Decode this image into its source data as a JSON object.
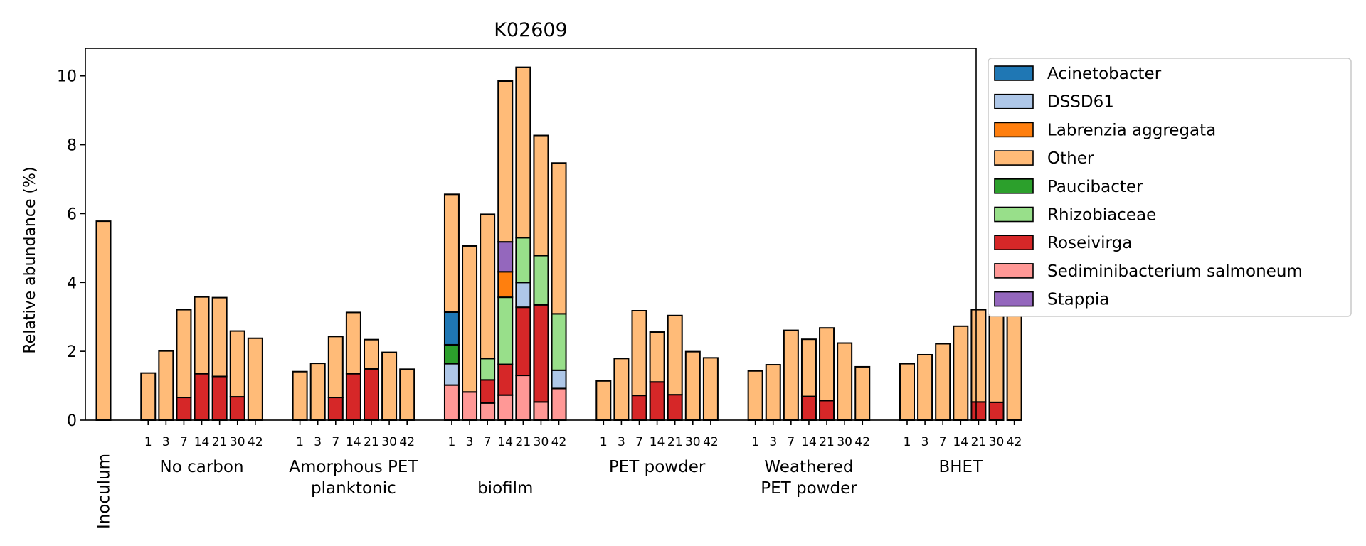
{
  "chart_data": {
    "type": "bar",
    "stacked": true,
    "title": "K02609",
    "xlabel": "",
    "ylabel": "Relative abundance (%)",
    "ylim": [
      0,
      10.8
    ],
    "yticks": [
      0,
      2,
      4,
      6,
      8,
      10
    ],
    "legend": {
      "placement": "outside-top-right",
      "entries": [
        "Acinetobacter",
        "DSSD61",
        "Labrenzia aggregata",
        "Other",
        "Paucibacter",
        "Rhizobiaceae",
        "Roseivirga",
        "Sediminibacterium salmoneum",
        "Stappia"
      ]
    },
    "colors": {
      "Acinetobacter": "#1f77b4",
      "DSSD61": "#aec7e8",
      "Labrenzia aggregata": "#ff7f0e",
      "Other": "#ffbb78",
      "Paucibacter": "#2ca02c",
      "Rhizobiaceae": "#98df8a",
      "Roseivirga": "#d62728",
      "Sediminibacterium salmoneum": "#ff9896",
      "Stappia": "#9467bd"
    },
    "stack_order": [
      "Sediminibacterium salmoneum",
      "Roseivirga",
      "DSSD61",
      "Rhizobiaceae",
      "Paucibacter",
      "Acinetobacter",
      "Labrenzia aggregata",
      "Stappia",
      "Other"
    ],
    "groups": [
      {
        "label_lines": [
          "Inoculum"
        ],
        "vertical_label": true,
        "bars": [
          {
            "tick": "",
            "segments": {
              "Other": 5.78
            }
          }
        ]
      },
      {
        "label_lines": [
          "No carbon"
        ],
        "bars": [
          {
            "tick": "1",
            "segments": {
              "Other": 1.37
            }
          },
          {
            "tick": "3",
            "segments": {
              "Other": 2.01
            }
          },
          {
            "tick": "7",
            "segments": {
              "Roseivirga": 0.66,
              "Other": 2.55
            }
          },
          {
            "tick": "14",
            "segments": {
              "Roseivirga": 1.35,
              "Other": 2.23
            }
          },
          {
            "tick": "21",
            "segments": {
              "Roseivirga": 1.27,
              "Other": 2.29
            }
          },
          {
            "tick": "30",
            "segments": {
              "Roseivirga": 0.68,
              "Other": 1.91
            }
          },
          {
            "tick": "42",
            "segments": {
              "Other": 2.38
            }
          }
        ]
      },
      {
        "label_lines": [
          "Amorphous PET",
          "planktonic"
        ],
        "bars": [
          {
            "tick": "1",
            "segments": {
              "Other": 1.41
            }
          },
          {
            "tick": "3",
            "segments": {
              "Other": 1.65
            }
          },
          {
            "tick": "7",
            "segments": {
              "Roseivirga": 0.66,
              "Other": 1.77
            }
          },
          {
            "tick": "14",
            "segments": {
              "Roseivirga": 1.35,
              "Other": 1.78
            }
          },
          {
            "tick": "21",
            "segments": {
              "Roseivirga": 1.49,
              "Other": 0.85
            }
          },
          {
            "tick": "30",
            "segments": {
              "Other": 1.97
            }
          },
          {
            "tick": "42",
            "segments": {
              "Other": 1.48
            }
          }
        ]
      },
      {
        "label_lines": [
          "",
          "biofilm"
        ],
        "bars": [
          {
            "tick": "1",
            "segments": {
              "Sediminibacterium salmoneum": 1.02,
              "DSSD61": 0.62,
              "Paucibacter": 0.55,
              "Acinetobacter": 0.95,
              "Other": 3.42
            }
          },
          {
            "tick": "3",
            "segments": {
              "Sediminibacterium salmoneum": 0.82,
              "Other": 4.24
            }
          },
          {
            "tick": "7",
            "segments": {
              "Sediminibacterium salmoneum": 0.5,
              "Roseivirga": 0.67,
              "Rhizobiaceae": 0.62,
              "Other": 4.19
            }
          },
          {
            "tick": "14",
            "segments": {
              "Sediminibacterium salmoneum": 0.73,
              "Roseivirga": 0.89,
              "Rhizobiaceae": 1.95,
              "Labrenzia aggregata": 0.74,
              "Stappia": 0.87,
              "Other": 4.67
            }
          },
          {
            "tick": "21",
            "segments": {
              "Sediminibacterium salmoneum": 1.3,
              "DSSD61": 0.72,
              "Roseivirga": 1.98,
              "Rhizobiaceae": 1.3,
              "Other": 4.95
            }
          },
          {
            "tick": "30",
            "segments": {
              "Sediminibacterium salmoneum": 0.53,
              "Roseivirga": 2.82,
              "Rhizobiaceae": 1.43,
              "Other": 3.49
            }
          },
          {
            "tick": "42",
            "segments": {
              "Sediminibacterium salmoneum": 0.92,
              "DSSD61": 0.53,
              "Rhizobiaceae": 1.64,
              "Other": 4.38
            }
          }
        ]
      },
      {
        "label_lines": [
          "PET powder"
        ],
        "bars": [
          {
            "tick": "1",
            "segments": {
              "Other": 1.14
            }
          },
          {
            "tick": "3",
            "segments": {
              "Other": 1.79
            }
          },
          {
            "tick": "7",
            "segments": {
              "Roseivirga": 0.72,
              "Other": 2.46
            }
          },
          {
            "tick": "14",
            "segments": {
              "Roseivirga": 1.11,
              "Other": 1.45
            }
          },
          {
            "tick": "21",
            "segments": {
              "Roseivirga": 0.74,
              "Other": 2.3
            }
          },
          {
            "tick": "30",
            "segments": {
              "Other": 1.99
            }
          },
          {
            "tick": "42",
            "segments": {
              "Other": 1.81
            }
          }
        ]
      },
      {
        "label_lines": [
          "Weathered",
          "PET powder"
        ],
        "bars": [
          {
            "tick": "1",
            "segments": {
              "Other": 1.43
            }
          },
          {
            "tick": "3",
            "segments": {
              "Other": 1.61
            }
          },
          {
            "tick": "7",
            "segments": {
              "Other": 2.61
            }
          },
          {
            "tick": "14",
            "segments": {
              "Roseivirga": 0.69,
              "Other": 1.66
            }
          },
          {
            "tick": "21",
            "segments": {
              "Roseivirga": 0.57,
              "Other": 2.11
            }
          },
          {
            "tick": "30",
            "segments": {
              "Other": 2.24
            }
          },
          {
            "tick": "42",
            "segments": {
              "Other": 1.55
            }
          }
        ]
      },
      {
        "label_lines": [
          "BHET"
        ],
        "bars": [
          {
            "tick": "1",
            "segments": {
              "Other": 1.64
            }
          },
          {
            "tick": "3",
            "segments": {
              "Other": 1.9
            }
          },
          {
            "tick": "7",
            "segments": {
              "Other": 2.22
            }
          },
          {
            "tick": "14",
            "segments": {
              "Other": 2.73
            }
          },
          {
            "tick": "21",
            "segments": {
              "Roseivirga": 0.53,
              "Other": 2.68
            }
          },
          {
            "tick": "30",
            "segments": {
              "Roseivirga": 0.52,
              "Other": 2.53
            }
          },
          {
            "tick": "42",
            "segments": {
              "Other": 3.71
            }
          }
        ]
      }
    ]
  }
}
